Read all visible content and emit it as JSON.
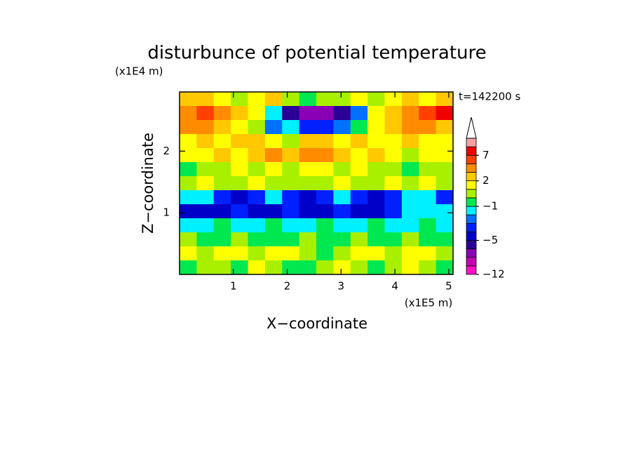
{
  "chart_data": {
    "type": "contour",
    "title": "disturbunce of potential temperature",
    "y_unit": "(x1E4 m)",
    "x_unit": "(x1E5 m)",
    "time_label": "t=142200 s",
    "xlabel": "X−coordinate",
    "ylabel": "Z−coordinate",
    "xlim": [
      0,
      5.08
    ],
    "ylim": [
      0,
      2.96
    ],
    "xticks": [
      1,
      2,
      3,
      4,
      5
    ],
    "yticks": [
      1,
      2
    ],
    "levels": [
      -12,
      -10,
      -8,
      -6,
      -5,
      -4,
      -3,
      -2,
      -1,
      0,
      1,
      2,
      3,
      5,
      7,
      9,
      12
    ],
    "colors": [
      "#ff10c8",
      "#c800b4",
      "#8a00b4",
      "#2a0096",
      "#0000c8",
      "#0020ff",
      "#0070ff",
      "#00f0ff",
      "#00e850",
      "#a8f000",
      "#ffff00",
      "#ffc800",
      "#ff8c00",
      "#ff4000",
      "#f00000",
      "#f4a0a0"
    ],
    "colorbar_ticks": [
      {
        "value": -12,
        "label": "−12"
      },
      {
        "value": -5,
        "label": "−5"
      },
      {
        "value": -1,
        "label": "−1"
      },
      2,
      7
    ],
    "z": [
      [
        2.5,
        2.5,
        1.5,
        0.5,
        1.5,
        2.5,
        0.5,
        -0.5,
        0.5,
        0.5,
        1.5,
        0.5,
        1.5,
        2.5,
        1.5,
        2.5
      ],
      [
        4,
        6,
        4,
        2.5,
        1.5,
        -1.5,
        -5.5,
        -7,
        -7,
        -5.5,
        -2.5,
        1.5,
        2.5,
        4,
        6,
        7.5
      ],
      [
        4,
        4,
        2.5,
        1.5,
        0.5,
        -2.5,
        -1.5,
        -3.5,
        -3.5,
        -3,
        -0.5,
        1.5,
        2.5,
        4,
        4,
        2.5
      ],
      [
        1.5,
        2.5,
        1.5,
        2.5,
        2.5,
        1.5,
        0.5,
        2.5,
        2.5,
        1.5,
        2.5,
        1.5,
        1.5,
        2.5,
        1.5,
        1.5
      ],
      [
        1.5,
        1.5,
        2.5,
        1.5,
        2.5,
        4,
        2.5,
        4,
        4,
        2.5,
        1.5,
        2.5,
        1.5,
        0.5,
        1.5,
        1.5
      ],
      [
        -0.5,
        0.5,
        0.5,
        1.5,
        0.5,
        1.5,
        0.5,
        1.5,
        1.5,
        0.5,
        1.5,
        0.5,
        0.5,
        -0.5,
        0.5,
        0.5
      ],
      [
        0.5,
        1.5,
        0.5,
        0.5,
        1.5,
        0.5,
        0.5,
        0.5,
        0.5,
        1.5,
        0.5,
        0.5,
        1.5,
        0.5,
        1.5,
        0.5
      ],
      [
        -1.5,
        -1.5,
        -3.5,
        -4.5,
        -3.5,
        -1.5,
        -3.5,
        -4.5,
        -3.5,
        -1.5,
        -3.5,
        -4.5,
        -3.5,
        -1.5,
        -1.5,
        -3.5
      ],
      [
        -4.5,
        -4.5,
        -4.5,
        -3.5,
        -4.5,
        -4.5,
        -3.5,
        -4.5,
        -4.5,
        -3.5,
        -4.5,
        -4.5,
        -3.5,
        -1.5,
        -1.5,
        -1.5
      ],
      [
        -1.5,
        -1.5,
        -0.5,
        -1.5,
        -1.5,
        -0.5,
        -1.5,
        -1.5,
        -0.5,
        -1.5,
        -1.5,
        -0.5,
        -1.5,
        -1.5,
        -0.5,
        -1.5
      ],
      [
        0.5,
        -0.5,
        -0.5,
        0.5,
        -0.5,
        -0.5,
        -0.5,
        0.5,
        -0.5,
        -0.5,
        0.5,
        -0.5,
        -0.5,
        0.5,
        -0.5,
        -0.5
      ],
      [
        1.5,
        0.5,
        1.5,
        1.5,
        0.5,
        1.5,
        1.5,
        0.5,
        -0.5,
        0.5,
        1.5,
        1.5,
        0.5,
        1.5,
        1.5,
        0.5
      ],
      [
        -0.5,
        0.5,
        0.5,
        -0.5,
        1.5,
        0.5,
        -0.5,
        -0.5,
        0.5,
        1.5,
        0.5,
        -0.5,
        0.5,
        1.5,
        0.5,
        -0.5
      ]
    ]
  }
}
